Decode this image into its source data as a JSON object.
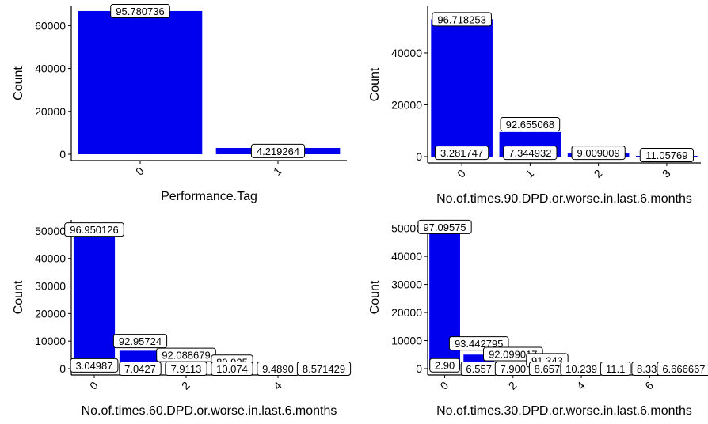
{
  "chart_data": [
    {
      "type": "bar",
      "xlabel": "Performance.Tag",
      "ylabel": "Count",
      "yticks": [
        0,
        20000,
        40000,
        60000
      ],
      "ylim": [
        0,
        69000
      ],
      "x_is_numeric": false,
      "categories": [
        "0",
        "1"
      ],
      "xticks": [
        "0",
        "1"
      ],
      "values": [
        66800,
        2950
      ],
      "bar_labels": [
        {
          "x": "0",
          "y": 66800,
          "text": "95.780736"
        },
        {
          "x": "1",
          "y": 1500,
          "text": "4.219264"
        }
      ],
      "bar_color": "#0000ee",
      "grid": false
    },
    {
      "type": "bar",
      "xlabel": "No.of.times.90.DPD.or.worse.in.last.6.months",
      "ylabel": "Count",
      "yticks": [
        0,
        20000,
        40000
      ],
      "ylim": [
        0,
        58000
      ],
      "x_is_numeric": false,
      "categories": [
        "0",
        "1",
        "2",
        "3"
      ],
      "xticks": [
        "0",
        "1",
        "2",
        "3"
      ],
      "values": [
        53000,
        9500,
        1200,
        300
      ],
      "bar_labels": [
        {
          "x": "0",
          "y": 53000,
          "text": "96.718253"
        },
        {
          "x": "0",
          "y": 1500,
          "text": "3.281747"
        },
        {
          "x": "1",
          "y": 12500,
          "text": "92.655068"
        },
        {
          "x": "1",
          "y": 1500,
          "text": "7.344932"
        },
        {
          "x": "2",
          "y": 1500,
          "text": "9.009009"
        },
        {
          "x": "3",
          "y": 600,
          "text": "11.05769"
        }
      ],
      "bar_color": "#0000ee",
      "grid": false
    },
    {
      "type": "bar",
      "xlabel": "No.of.times.60.DPD.or.worse.in.last.6.months",
      "ylabel": "Count",
      "yticks": [
        0,
        10000,
        20000,
        30000,
        40000,
        50000
      ],
      "ylim": [
        0,
        54000
      ],
      "x_is_numeric": true,
      "categories": [
        "0",
        "1",
        "2",
        "3",
        "4",
        "5"
      ],
      "xticks": [
        "0",
        "2",
        "4"
      ],
      "values": [
        51000,
        6500,
        3000,
        1200,
        500,
        200
      ],
      "bar_labels": [
        {
          "x": "0",
          "y": 50500,
          "text": "96.950126"
        },
        {
          "x": "0",
          "y": 1200,
          "text": "3.04987"
        },
        {
          "x": "1",
          "y": 10000,
          "text": "92.95724"
        },
        {
          "x": "1",
          "y": 0,
          "text": "7.0427"
        },
        {
          "x": "2",
          "y": 5000,
          "text": "92.088679"
        },
        {
          "x": "2",
          "y": 0,
          "text": "7.9113"
        },
        {
          "x": "3",
          "y": 2500,
          "text": "89.925"
        },
        {
          "x": "3",
          "y": 0,
          "text": "10.074"
        },
        {
          "x": "4",
          "y": 0,
          "text": "9.4890"
        },
        {
          "x": "5",
          "y": 0,
          "text": "8.571429"
        }
      ],
      "bar_color": "#0000ee",
      "grid": false
    },
    {
      "type": "bar",
      "xlabel": "No.of.times.30.DPD.or.worse.in.last.6.months",
      "ylabel": "Count",
      "yticks": [
        0,
        10000,
        20000,
        30000,
        40000,
        50000
      ],
      "ylim": [
        0,
        53000
      ],
      "x_is_numeric": true,
      "categories": [
        "0",
        "1",
        "2",
        "3",
        "4",
        "5",
        "6",
        "7"
      ],
      "xticks": [
        "0",
        "2",
        "4",
        "6"
      ],
      "values": [
        52500,
        5000,
        2500,
        1500,
        600,
        300,
        150,
        50
      ],
      "bar_labels": [
        {
          "x": "0",
          "y": 50500,
          "text": "97.09575"
        },
        {
          "x": "0",
          "y": 1200,
          "text": "2.90"
        },
        {
          "x": "1",
          "y": 9000,
          "text": "93.442795"
        },
        {
          "x": "1",
          "y": 0,
          "text": "6.557"
        },
        {
          "x": "2",
          "y": 5200,
          "text": "92.099017"
        },
        {
          "x": "2",
          "y": 0,
          "text": "7.900"
        },
        {
          "x": "3",
          "y": 3000,
          "text": "91.343"
        },
        {
          "x": "3",
          "y": 0,
          "text": "8.657"
        },
        {
          "x": "4",
          "y": 0,
          "text": "10.239"
        },
        {
          "x": "5",
          "y": 0,
          "text": "11.1"
        },
        {
          "x": "6",
          "y": 0,
          "text": "8.333"
        },
        {
          "x": "7",
          "y": 0,
          "text": "6.666667"
        }
      ],
      "bar_color": "#0000ee",
      "grid": false
    }
  ]
}
